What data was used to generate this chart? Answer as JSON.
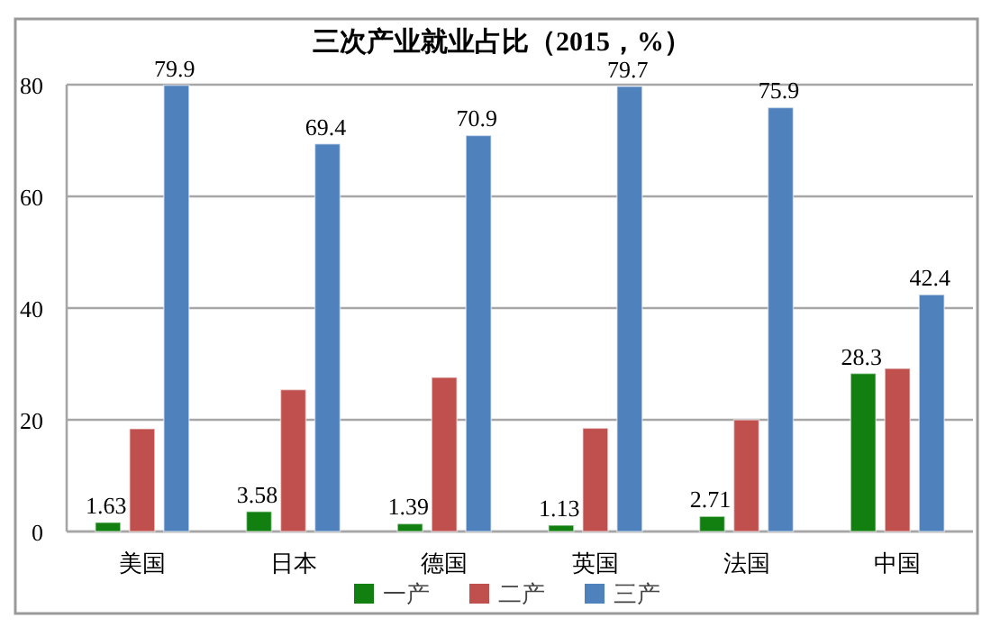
{
  "chart_data": {
    "type": "bar",
    "title": "三次产业就业占比（2015，%）",
    "categories": [
      "美国",
      "日本",
      "德国",
      "英国",
      "法国",
      "中国"
    ],
    "series": [
      {
        "name": "一产",
        "color": "#118011",
        "values": [
          1.63,
          3.58,
          1.39,
          1.13,
          2.71,
          28.3
        ],
        "value_labels": [
          "1.63",
          "3.58",
          "1.39",
          "1.13",
          "2.71",
          "28.3"
        ]
      },
      {
        "name": "二产",
        "color": "#c0504d",
        "values": [
          18.4,
          25.4,
          27.6,
          18.5,
          20.0,
          29.2
        ]
      },
      {
        "name": "三产",
        "color": "#4f81bd",
        "values": [
          79.9,
          69.4,
          70.9,
          79.7,
          75.9,
          42.4
        ],
        "value_labels": [
          "79.9",
          "69.4",
          "70.9",
          "79.7",
          "75.9",
          "42.4"
        ]
      }
    ],
    "ylim": [
      0,
      80
    ],
    "yticks": [
      0,
      20,
      40,
      60,
      80
    ],
    "grid": "y",
    "legend": "bottom"
  }
}
